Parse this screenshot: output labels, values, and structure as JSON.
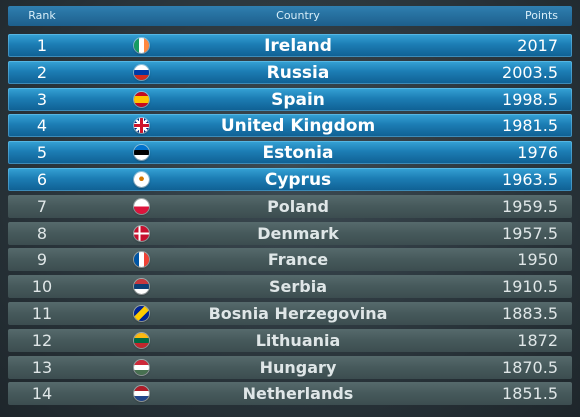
{
  "header": {
    "rank_label": "Rank",
    "country_label": "Country",
    "points_label": "Points"
  },
  "colors": {
    "highlight_row": "#1c7db4",
    "regular_row": "#46595b",
    "header": "#2f7fb0"
  },
  "rows": [
    {
      "rank": "1",
      "country": "Ireland",
      "points": "2017",
      "flag": "ireland-flag-icon",
      "highlight": true
    },
    {
      "rank": "2",
      "country": "Russia",
      "points": "2003.5",
      "flag": "russia-flag-icon",
      "highlight": true
    },
    {
      "rank": "3",
      "country": "Spain",
      "points": "1998.5",
      "flag": "spain-flag-icon",
      "highlight": true
    },
    {
      "rank": "4",
      "country": "United Kingdom",
      "points": "1981.5",
      "flag": "uk-flag-icon",
      "highlight": true
    },
    {
      "rank": "5",
      "country": "Estonia",
      "points": "1976",
      "flag": "estonia-flag-icon",
      "highlight": true
    },
    {
      "rank": "6",
      "country": "Cyprus",
      "points": "1963.5",
      "flag": "cyprus-flag-icon",
      "highlight": true
    },
    {
      "rank": "7",
      "country": "Poland",
      "points": "1959.5",
      "flag": "poland-flag-icon",
      "highlight": false
    },
    {
      "rank": "8",
      "country": "Denmark",
      "points": "1957.5",
      "flag": "denmark-flag-icon",
      "highlight": false
    },
    {
      "rank": "9",
      "country": "France",
      "points": "1950",
      "flag": "france-flag-icon",
      "highlight": false
    },
    {
      "rank": "10",
      "country": "Serbia",
      "points": "1910.5",
      "flag": "serbia-flag-icon",
      "highlight": false
    },
    {
      "rank": "11",
      "country": "Bosnia Herzegovina",
      "points": "1883.5",
      "flag": "bosnia-flag-icon",
      "highlight": false
    },
    {
      "rank": "12",
      "country": "Lithuania",
      "points": "1872",
      "flag": "lithuania-flag-icon",
      "highlight": false
    },
    {
      "rank": "13",
      "country": "Hungary",
      "points": "1870.5",
      "flag": "hungary-flag-icon",
      "highlight": false
    },
    {
      "rank": "14",
      "country": "Netherlands",
      "points": "1851.5",
      "flag": "netherlands-flag-icon",
      "highlight": false
    }
  ]
}
